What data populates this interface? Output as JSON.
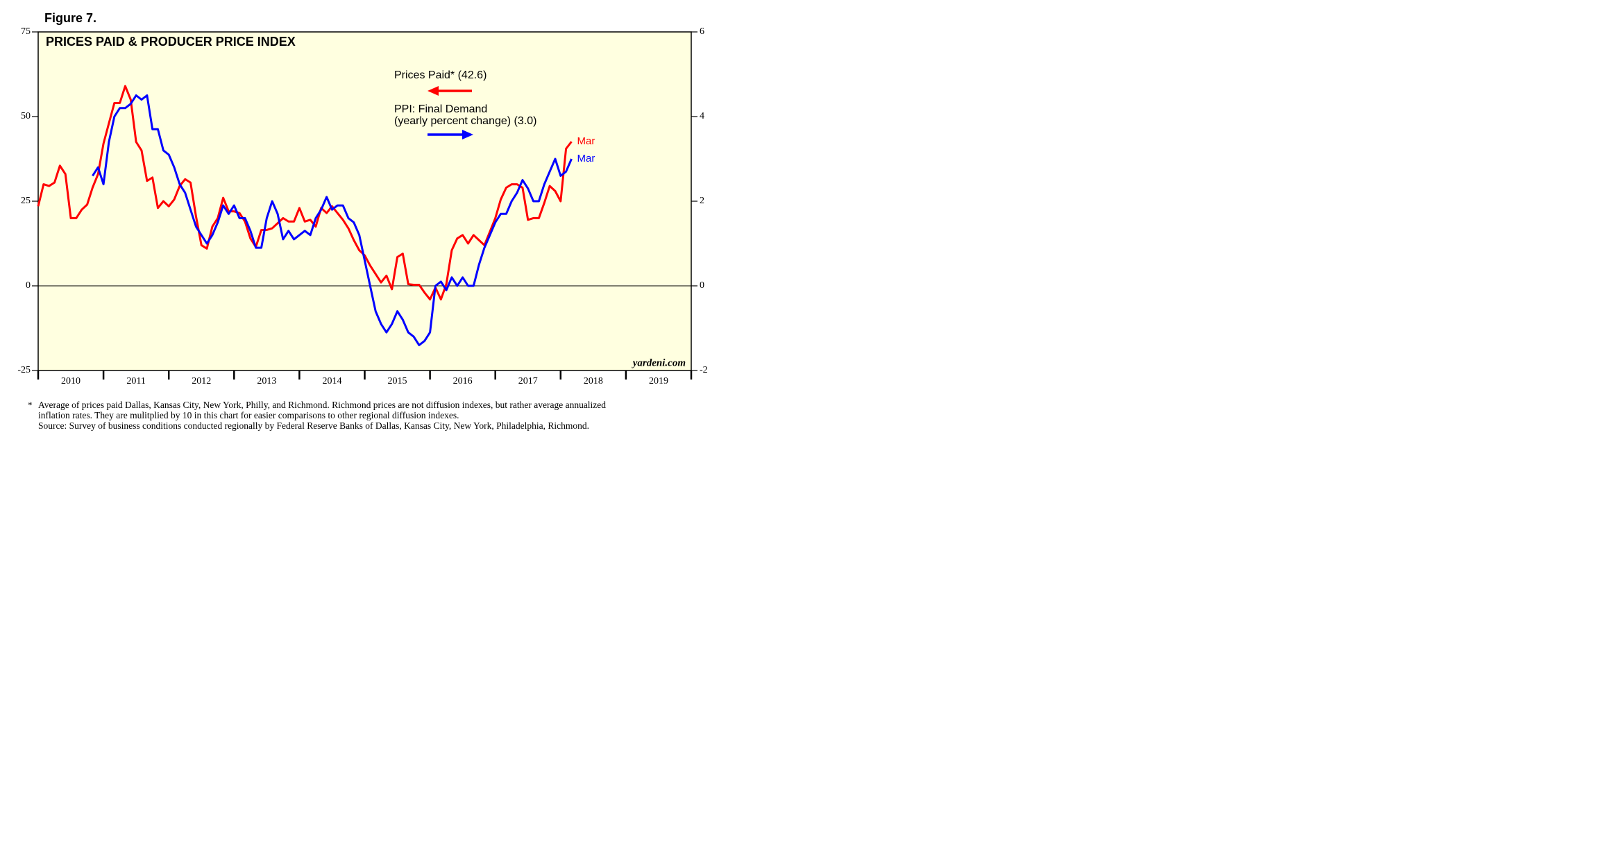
{
  "chart_data": {
    "type": "line",
    "figure_label": "Figure 7.",
    "title": "PRICES PAID & PRODUCER PRICE INDEX",
    "source_label": "yardeni.com",
    "x": [
      2010.0,
      2010.083,
      2010.167,
      2010.25,
      2010.333,
      2010.417,
      2010.5,
      2010.583,
      2010.667,
      2010.75,
      2010.833,
      2010.917,
      2011.0,
      2011.083,
      2011.167,
      2011.25,
      2011.333,
      2011.417,
      2011.5,
      2011.583,
      2011.667,
      2011.75,
      2011.833,
      2011.917,
      2012.0,
      2012.083,
      2012.167,
      2012.25,
      2012.333,
      2012.417,
      2012.5,
      2012.583,
      2012.667,
      2012.75,
      2012.833,
      2012.917,
      2013.0,
      2013.083,
      2013.167,
      2013.25,
      2013.333,
      2013.417,
      2013.5,
      2013.583,
      2013.667,
      2013.75,
      2013.833,
      2013.917,
      2014.0,
      2014.083,
      2014.167,
      2014.25,
      2014.333,
      2014.417,
      2014.5,
      2014.583,
      2014.667,
      2014.75,
      2014.833,
      2014.917,
      2015.0,
      2015.083,
      2015.167,
      2015.25,
      2015.333,
      2015.417,
      2015.5,
      2015.583,
      2015.667,
      2015.75,
      2015.833,
      2015.917,
      2016.0,
      2016.083,
      2016.167,
      2016.25,
      2016.333,
      2016.417,
      2016.5,
      2016.583,
      2016.667,
      2016.75,
      2016.833,
      2016.917,
      2017.0,
      2017.083,
      2017.167,
      2017.25,
      2017.333,
      2017.417,
      2017.5,
      2017.583,
      2017.667,
      2017.75,
      2017.833,
      2017.917,
      2018.0,
      2018.083,
      2018.167
    ],
    "series": [
      {
        "name": "Prices Paid* (42.6)",
        "color": "#ff0000",
        "end_label": "Mar",
        "values": [
          23.5,
          30,
          29.5,
          30.5,
          35.5,
          33,
          20,
          20,
          22.5,
          24,
          29,
          33,
          42,
          48,
          54,
          54,
          59,
          55,
          42.5,
          40,
          31,
          32,
          23,
          25,
          23.5,
          25.5,
          29.5,
          31.5,
          30.5,
          20.5,
          12,
          11,
          17.5,
          20,
          26,
          22,
          22,
          21.5,
          19,
          14,
          11.5,
          16.5,
          16.5,
          17,
          18.5,
          20,
          19,
          19,
          23,
          19,
          19.5,
          17.5,
          23,
          21.5,
          23.5,
          21.5,
          19.5,
          17,
          13.5,
          10.5,
          9,
          6,
          3.5,
          1,
          3,
          -1,
          8.5,
          9.5,
          0.5,
          0.3,
          0.3,
          -2,
          -4,
          -0.5,
          -4,
          0.5,
          10.5,
          14,
          15,
          12.5,
          15,
          13.5,
          12,
          16,
          20,
          25.5,
          29,
          30,
          30,
          29,
          19.5,
          20,
          20,
          24.5,
          29.5,
          28,
          25,
          40.5,
          42.6
        ]
      },
      {
        "name": "PPI: Final Demand",
        "note": "(yearly percent change) (3.0)",
        "color": "#0000ff",
        "axis": "y2",
        "end_label": "Mar",
        "values": [
          null,
          null,
          null,
          null,
          null,
          null,
          null,
          null,
          null,
          null,
          2.6,
          2.8,
          2.4,
          3.4,
          4.0,
          4.2,
          4.2,
          4.3,
          4.5,
          4.4,
          4.5,
          3.7,
          3.7,
          3.2,
          3.1,
          2.8,
          2.4,
          2.2,
          1.8,
          1.4,
          1.2,
          1.0,
          1.2,
          1.5,
          1.9,
          1.7,
          1.9,
          1.6,
          1.6,
          1.3,
          0.9,
          0.9,
          1.6,
          2.0,
          1.7,
          1.1,
          1.3,
          1.1,
          1.2,
          1.3,
          1.2,
          1.6,
          1.8,
          2.1,
          1.8,
          1.9,
          1.9,
          1.6,
          1.5,
          1.2,
          0.6,
          0,
          -0.6,
          -0.9,
          -1.1,
          -0.9,
          -0.6,
          -0.8,
          -1.1,
          -1.2,
          -1.4,
          -1.3,
          -1.1,
          0,
          0.1,
          -0.1,
          0.2,
          0,
          0.2,
          0,
          0,
          0.5,
          0.9,
          1.2,
          1.5,
          1.7,
          1.7,
          2.0,
          2.2,
          2.5,
          2.3,
          2.0,
          2.0,
          2.4,
          2.7,
          3.0,
          2.6,
          2.7,
          3.0
        ]
      }
    ],
    "xlim": [
      2010,
      2020
    ],
    "xticks": [
      2010,
      2011,
      2012,
      2013,
      2014,
      2015,
      2016,
      2017,
      2018,
      2019,
      2020
    ],
    "year_labels": [
      "2010",
      "2011",
      "2012",
      "2013",
      "2014",
      "2015",
      "2016",
      "2017",
      "2018",
      "2019"
    ],
    "ylim": [
      -25,
      75
    ],
    "yticks": [
      -25,
      0,
      25,
      50,
      75
    ],
    "y2lim": [
      -2,
      6
    ],
    "y2ticks": [
      -2,
      0,
      2,
      4,
      6
    ],
    "zero_line": true,
    "footnote_marker": "*",
    "footnote_lines": [
      "Average of prices paid Dallas, Kansas City, New York, Philly, and Richmond. Richmond prices are not diffusion indexes, but rather average annualized",
      "inflation rates. They are mulitplied by 10 in this chart for easier comparisons to other regional diffusion indexes.",
      "Source: Survey of business conditions conducted regionally by Federal Reserve Banks of Dallas, Kansas City, New York, Philadelphia, Richmond."
    ]
  }
}
